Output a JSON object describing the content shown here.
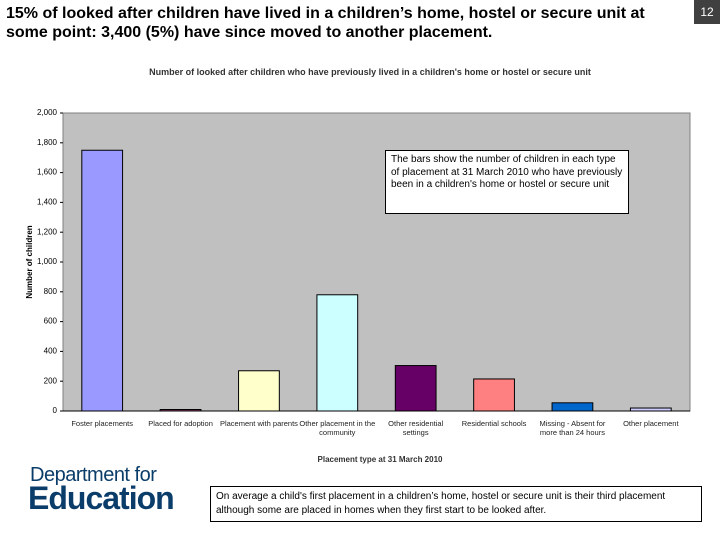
{
  "slide": {
    "title": "15% of looked after children have lived in a children’s home, hostel or secure unit at some point: 3,400 (5%) have since moved to another placement.",
    "page_number": "12",
    "logo": {
      "line1": "Department for",
      "line2": "Education"
    },
    "footnote": "On average a child's first placement in a children’s home, hostel or secure unit is their third placement although some are placed in homes when they first start to be looked after."
  },
  "chart_data": {
    "type": "bar",
    "title": "Number of looked after children who have previously lived in a children's home or hostel or secure unit",
    "x_label": "Placement type at 31 March 2010",
    "y_label": "Number of children",
    "annotation": "The bars show the number of children in each type of placement at 31 March 2010 who have previously been in a children's home or hostel or secure unit",
    "categories": [
      "Foster placements",
      "Placed for adoption",
      "Placement with parents",
      "Other placement in the community",
      "Other residential settings",
      "Residential schools",
      "Missing - Absent for more than 24 hours",
      "Other placement"
    ],
    "values": [
      1750,
      10,
      270,
      780,
      305,
      215,
      55,
      20
    ],
    "colors": [
      "#9999ff",
      "#993366",
      "#ffffcc",
      "#ccffff",
      "#660066",
      "#ff8080",
      "#0066cc",
      "#ccccff"
    ],
    "ylim": [
      0,
      2000
    ],
    "yticks": [
      0,
      200,
      400,
      600,
      800,
      {
        "value": 1000,
        "label": "1,000"
      },
      {
        "value": 1200,
        "label": "1,200"
      },
      {
        "value": 1400,
        "label": "1,400"
      },
      {
        "value": 1600,
        "label": "1,600"
      },
      {
        "value": 1800,
        "label": "1,800"
      },
      {
        "value": 2000,
        "label": "2,000"
      }
    ],
    "grid": false
  }
}
